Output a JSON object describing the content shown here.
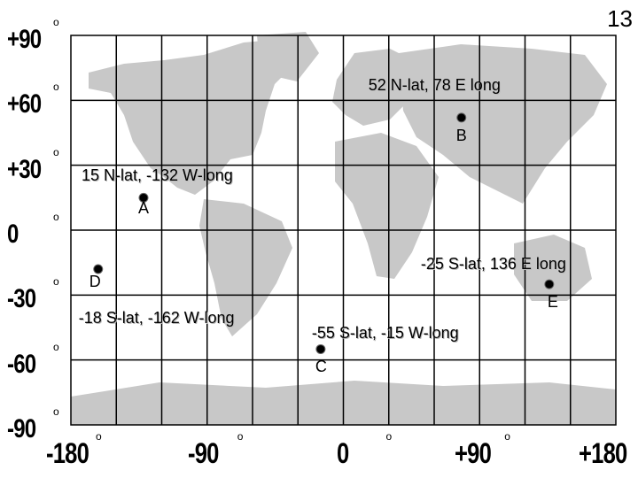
{
  "page": {
    "number": "13",
    "degree_symbol": "o"
  },
  "axes": {
    "y_labels": [
      "+90",
      "+60",
      "+30",
      "0",
      "-30",
      "-60",
      "-90"
    ],
    "x_labels": [
      "-180",
      "-90",
      "0",
      "+90",
      "+180"
    ]
  },
  "points": [
    {
      "letter": "A",
      "label": "15 N-lat, -132 W-long"
    },
    {
      "letter": "B",
      "label": "52 N-lat, 78 E long"
    },
    {
      "letter": "C",
      "label": "-55 S-lat, -15 W-long"
    },
    {
      "letter": "D",
      "label": "-18 S-lat, -162 W-long"
    },
    {
      "letter": "E",
      "label": "-25 S-lat, 136 E long"
    }
  ],
  "colors": {
    "land": "#c8c8c8",
    "grid": "#000000",
    "point": "#000000"
  }
}
